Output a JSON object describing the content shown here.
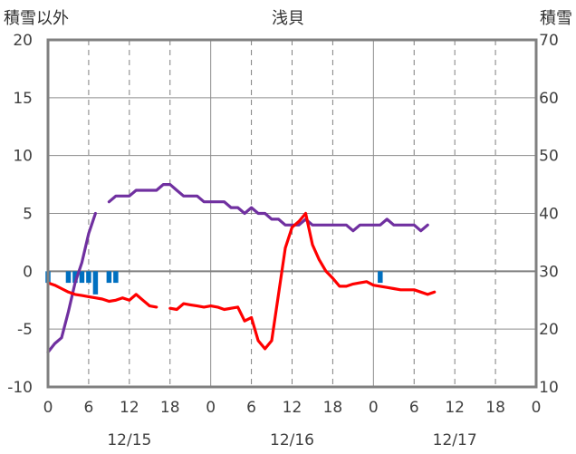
{
  "chart_data": {
    "type": "line",
    "title": "浅貝",
    "left_axis_label": "積雪以外",
    "right_axis_label": "積雪",
    "left_ylim": [
      -10,
      20
    ],
    "left_yticks": [
      "-10",
      "-5",
      "0",
      "5",
      "10",
      "15",
      "20"
    ],
    "right_ylim": [
      10,
      70
    ],
    "right_yticks": [
      "10",
      "20",
      "30",
      "40",
      "50",
      "60",
      "70"
    ],
    "x_range_hours": [
      0,
      72
    ],
    "x_tick_labels": [
      "0",
      "6",
      "12",
      "18",
      "0",
      "6",
      "12",
      "18",
      "0",
      "6",
      "12",
      "18",
      "0"
    ],
    "date_labels": [
      {
        "label": "12/15",
        "hour": 12
      },
      {
        "label": "12/16",
        "hour": 36
      },
      {
        "label": "12/17",
        "hour": 60
      }
    ],
    "grid": true,
    "series": [
      {
        "name": "",
        "axis": "right",
        "color": "#7030a0",
        "segments": [
          [
            [
              0,
              16
            ],
            [
              1,
              17.5
            ],
            [
              2,
              18.5
            ],
            [
              3,
              23
            ],
            [
              4,
              28
            ],
            [
              5,
              31.5
            ],
            [
              6,
              36.5
            ],
            [
              7,
              40
            ]
          ],
          [
            [
              9,
              42
            ],
            [
              10,
              43
            ],
            [
              11,
              43
            ],
            [
              12,
              43
            ],
            [
              13,
              44
            ],
            [
              14,
              44
            ],
            [
              15,
              44
            ],
            [
              16,
              44
            ],
            [
              17,
              45
            ],
            [
              18,
              45
            ],
            [
              19,
              44
            ],
            [
              20,
              43
            ],
            [
              21,
              43
            ],
            [
              22,
              43
            ],
            [
              23,
              42
            ],
            [
              24,
              42
            ],
            [
              25,
              42
            ],
            [
              26,
              42
            ],
            [
              27,
              41
            ],
            [
              28,
              41
            ],
            [
              29,
              40
            ],
            [
              30,
              41
            ],
            [
              31,
              40
            ],
            [
              32,
              40
            ],
            [
              33,
              39
            ],
            [
              34,
              39
            ],
            [
              35,
              38
            ],
            [
              36,
              38
            ],
            [
              37,
              38
            ],
            [
              38,
              39
            ],
            [
              39,
              38
            ],
            [
              40,
              38
            ],
            [
              41,
              38
            ],
            [
              42,
              38
            ],
            [
              43,
              38
            ],
            [
              44,
              38
            ],
            [
              45,
              37
            ],
            [
              46,
              38
            ],
            [
              47,
              38
            ],
            [
              48,
              38
            ],
            [
              49,
              38
            ],
            [
              50,
              39
            ],
            [
              51,
              38
            ],
            [
              52,
              38
            ],
            [
              53,
              38
            ],
            [
              54,
              38
            ],
            [
              55,
              37
            ],
            [
              56,
              38
            ]
          ]
        ]
      },
      {
        "name": "",
        "axis": "left",
        "color": "#ff0000",
        "segments": [
          [
            [
              0,
              -1
            ],
            [
              1,
              -1.2
            ],
            [
              2,
              -1.5
            ],
            [
              3,
              -1.8
            ],
            [
              4,
              -2
            ],
            [
              5,
              -2.1
            ],
            [
              6,
              -2.2
            ],
            [
              7,
              -2.3
            ],
            [
              8,
              -2.4
            ],
            [
              9,
              -2.6
            ],
            [
              10,
              -2.5
            ],
            [
              11,
              -2.3
            ],
            [
              12,
              -2.5
            ],
            [
              13,
              -2
            ],
            [
              14,
              -2.5
            ],
            [
              15,
              -3
            ],
            [
              16,
              -3.1
            ]
          ],
          [
            [
              18,
              -3.2
            ],
            [
              19,
              -3.3
            ],
            [
              20,
              -2.8
            ],
            [
              21,
              -2.9
            ],
            [
              22,
              -3
            ],
            [
              23,
              -3.1
            ],
            [
              24,
              -3
            ],
            [
              25,
              -3.1
            ],
            [
              26,
              -3.3
            ],
            [
              27,
              -3.2
            ],
            [
              28,
              -3.1
            ],
            [
              29,
              -4.3
            ],
            [
              30,
              -4
            ],
            [
              31,
              -6
            ],
            [
              32,
              -6.7
            ],
            [
              33,
              -6
            ],
            [
              34,
              -2
            ],
            [
              35,
              2
            ],
            [
              36,
              3.8
            ],
            [
              37,
              4.3
            ],
            [
              38,
              5
            ],
            [
              39,
              2.3
            ],
            [
              40,
              1
            ],
            [
              41,
              0
            ],
            [
              42,
              -0.6
            ],
            [
              43,
              -1.3
            ],
            [
              44,
              -1.3
            ],
            [
              45,
              -1.1
            ],
            [
              46,
              -1
            ],
            [
              47,
              -0.9
            ],
            [
              48,
              -1.2
            ],
            [
              49,
              -1.3
            ],
            [
              50,
              -1.4
            ],
            [
              51,
              -1.5
            ],
            [
              52,
              -1.6
            ],
            [
              53,
              -1.6
            ],
            [
              54,
              -1.6
            ],
            [
              55,
              -1.8
            ],
            [
              56,
              -2
            ],
            [
              57,
              -1.8
            ]
          ]
        ]
      },
      {
        "name": "",
        "axis": "left",
        "type": "bar",
        "color": "#0070c0",
        "bars": [
          [
            0,
            -1
          ],
          [
            3,
            -1
          ],
          [
            4,
            -1
          ],
          [
            5,
            -1
          ],
          [
            6,
            -1
          ],
          [
            7,
            -2
          ],
          [
            9,
            -1
          ],
          [
            10,
            -1
          ],
          [
            49,
            -1
          ]
        ]
      }
    ]
  }
}
